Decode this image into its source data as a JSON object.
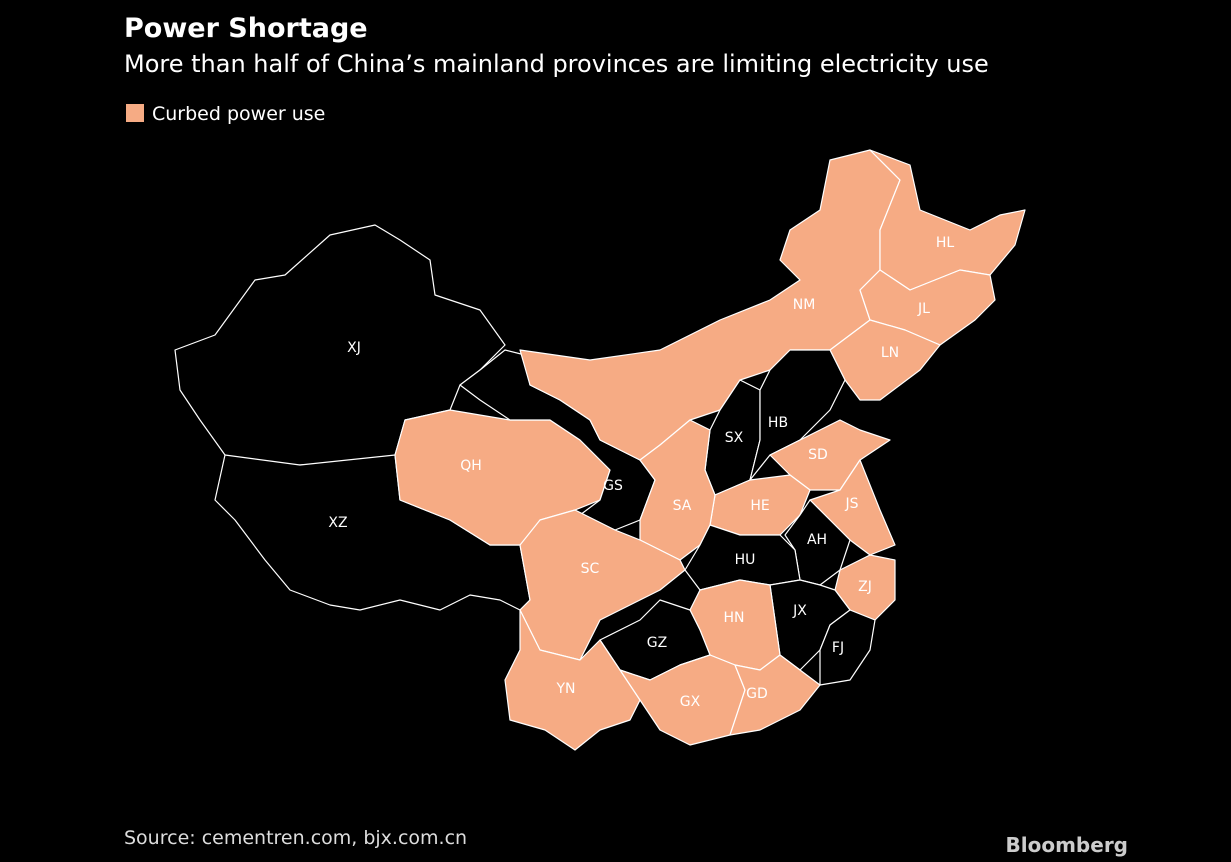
{
  "map": {
    "title": "Power Shortage",
    "subtitle": "More than half of China’s mainland provinces are limiting electricity use",
    "legend": {
      "label": "Curbed power use",
      "color": "#f6ab84"
    },
    "background": "#000000",
    "border_color": "#ffffff",
    "uncurbed_color": "#000000",
    "provinces": [
      {
        "label": "XJ",
        "curbed": false
      },
      {
        "label": "XZ",
        "curbed": false
      },
      {
        "label": "QH",
        "curbed": true
      },
      {
        "label": "GS",
        "curbed": false
      },
      {
        "label": "NM",
        "curbed": true
      },
      {
        "label": "HL",
        "curbed": true
      },
      {
        "label": "JL",
        "curbed": true
      },
      {
        "label": "LN",
        "curbed": true
      },
      {
        "label": "SX",
        "curbed": false
      },
      {
        "label": "HB",
        "curbed": false
      },
      {
        "label": "SD",
        "curbed": true
      },
      {
        "label": "HE",
        "curbed": true
      },
      {
        "label": "SA",
        "curbed": true
      },
      {
        "label": "JS",
        "curbed": true
      },
      {
        "label": "AH",
        "curbed": false
      },
      {
        "label": "HU",
        "curbed": false
      },
      {
        "label": "SC",
        "curbed": true
      },
      {
        "label": "ZJ",
        "curbed": true
      },
      {
        "label": "JX",
        "curbed": false
      },
      {
        "label": "FJ",
        "curbed": false
      },
      {
        "label": "HN",
        "curbed": true
      },
      {
        "label": "GZ",
        "curbed": false
      },
      {
        "label": "YN",
        "curbed": true
      },
      {
        "label": "GX",
        "curbed": true
      },
      {
        "label": "GD",
        "curbed": true
      }
    ],
    "source": "Source: cementren.com, bjx.com.cn",
    "brand": "Bloomberg"
  }
}
